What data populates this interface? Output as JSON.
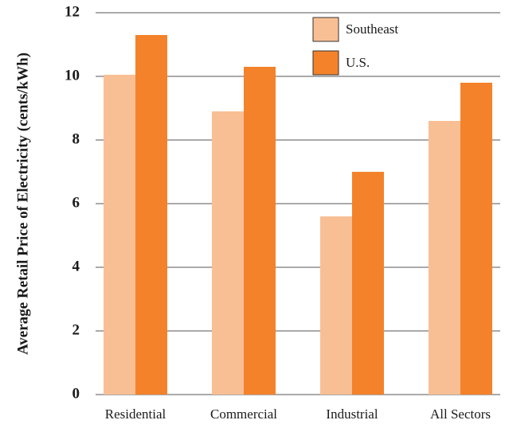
{
  "chart_data": {
    "type": "bar",
    "y_label": "Average Retail Price of Electricity (cents/kWh)",
    "categories": [
      "Residential",
      "Commercial",
      "Industrial",
      "All Sectors"
    ],
    "series": [
      {
        "name": "Southeast",
        "color": "#f9bf94",
        "values": [
          10.05,
          8.9,
          5.6,
          8.6
        ]
      },
      {
        "name": "U.S.",
        "color": "#f4822a",
        "values": [
          11.3,
          10.3,
          7.0,
          9.8
        ]
      }
    ],
    "ylim": [
      0,
      12
    ],
    "yticks": [
      0,
      2,
      4,
      6,
      8,
      10,
      12
    ],
    "grid": true,
    "legend": "top-right"
  }
}
